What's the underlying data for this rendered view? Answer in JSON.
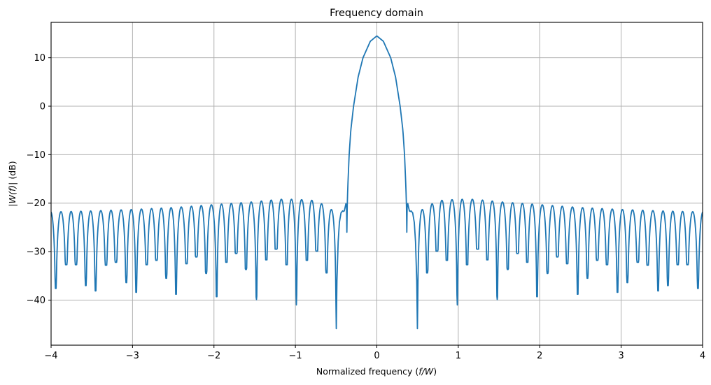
{
  "chart_data": {
    "type": "line",
    "title": "Frequency domain",
    "xlabel": "Normalized frequency (f/W)",
    "xlabel_parts": [
      "Normalized frequency (",
      "f/W",
      ")"
    ],
    "ylabel": "|W(f)| (dB)",
    "ylabel_parts": [
      "|",
      "W(f)",
      "| (dB)"
    ],
    "xlim": [
      -4,
      4
    ],
    "ylim": [
      -49.3,
      17.3
    ],
    "xticks": [
      -4,
      -3,
      -2,
      -1,
      0,
      1,
      2,
      3,
      4
    ],
    "xtick_labels": [
      "−4",
      "−3",
      "−2",
      "−1",
      "0",
      "1",
      "2",
      "3",
      "4"
    ],
    "yticks": [
      -40,
      -30,
      -20,
      -10,
      0,
      10
    ],
    "ytick_labels": [
      "−40",
      "−30",
      "−20",
      "−10",
      "0",
      "10"
    ],
    "grid": true,
    "legend": null,
    "series": [
      {
        "name": "|W(f)|",
        "color": "#1f77b4",
        "symmetric": true,
        "main_lobe": {
          "f": [
            0,
            0.08,
            0.17,
            0.23,
            0.286,
            0.32,
            0.34,
            0.355,
            0.363,
            0.368
          ],
          "db": [
            14.5,
            13.4,
            10.0,
            6.0,
            0.0,
            -5.0,
            -10.0,
            -16.0,
            -20.0,
            -26.0
          ]
        },
        "shoulder": {
          "f": [
            0.368,
            0.372,
            0.38,
            0.39,
            0.4,
            0.41,
            0.42,
            0.44,
            0.46,
            0.475,
            0.49,
            0.498
          ],
          "db": [
            -26.0,
            -20.8,
            -20.1,
            -20.9,
            -21.6,
            -21.7,
            -21.6,
            -22.0,
            -24.0,
            -28.0,
            -36.0,
            -45.9
          ]
        },
        "sidelobe_nulls_f": [
          -3.943,
          -3.814,
          -3.694,
          -3.574,
          -3.454,
          -3.325,
          -3.204,
          -3.076,
          -2.955,
          -2.826,
          -2.706,
          -2.586,
          -2.466,
          -2.337,
          -2.216,
          -2.096,
          -1.967,
          -1.847,
          -1.727,
          -1.607,
          -1.478,
          -1.357,
          -1.237,
          -1.108,
          -0.988,
          -0.859,
          -0.739,
          -0.619,
          -0.498
        ],
        "sidelobe_nulls_db": [
          -37.6,
          -32.7,
          -32.7,
          -37.0,
          -38.1,
          -32.8,
          -32.2,
          -36.4,
          -38.4,
          -32.7,
          -31.8,
          -35.5,
          -38.8,
          -32.5,
          -31.1,
          -34.5,
          -39.3,
          -32.2,
          -30.4,
          -33.7,
          -39.9,
          -31.7,
          -29.5,
          -32.7,
          -41.0,
          -31.8,
          -29.9,
          -34.4,
          -45.9
        ],
        "sidelobe_peak_envelope": {
          "f": [
            -4.0,
            -3.5,
            -3.0,
            -2.5,
            -2.0,
            -1.5,
            -1.2,
            -1.0,
            -0.8,
            -0.65,
            -0.55
          ],
          "db": [
            -21.8,
            -21.6,
            -21.3,
            -20.9,
            -20.3,
            -19.7,
            -19.2,
            -19.2,
            -19.4,
            -20.3,
            -21.4
          ]
        }
      }
    ]
  }
}
